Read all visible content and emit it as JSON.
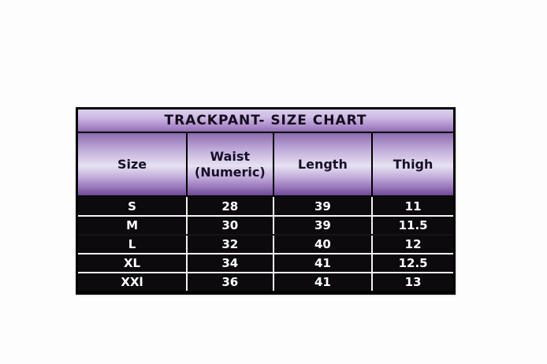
{
  "table": {
    "title": "TRACKPANT- SIZE CHART",
    "headers": [
      "Size",
      "Waist\n(Numeric)",
      "Length",
      "Thigh"
    ],
    "rows": [
      [
        "S",
        "28",
        "39",
        "11"
      ],
      [
        "M",
        "30",
        "39",
        "11.5"
      ],
      [
        "L",
        "32",
        "40",
        "12"
      ],
      [
        "XL",
        "34",
        "41",
        "12.5"
      ],
      [
        "XXl",
        "36",
        "41",
        "13"
      ]
    ],
    "colors": {
      "title_gradient_top": "#dccfec",
      "title_gradient_bottom": "#8e6ab0",
      "header_gradient_top": "#8d6bae",
      "header_gradient_mid": "#e8e1f2",
      "header_gradient_bottom": "#6d4994",
      "row_background": "#0c0a0d",
      "row_text": "#ffffff",
      "grid_line": "#f2f2f2",
      "border": "#000000",
      "header_text": "#17102a"
    }
  },
  "chart_data": {
    "type": "table",
    "title": "TRACKPANT- SIZE CHART",
    "columns": [
      "Size",
      "Waist (Numeric)",
      "Length",
      "Thigh"
    ],
    "rows": [
      [
        "S",
        28,
        39,
        11
      ],
      [
        "M",
        30,
        39,
        11.5
      ],
      [
        "L",
        32,
        40,
        12
      ],
      [
        "XL",
        34,
        41,
        12.5
      ],
      [
        "XXl",
        36,
        41,
        13
      ]
    ],
    "layout": {
      "grid": "white lines on black rows",
      "header_style": "purple gradient"
    }
  }
}
